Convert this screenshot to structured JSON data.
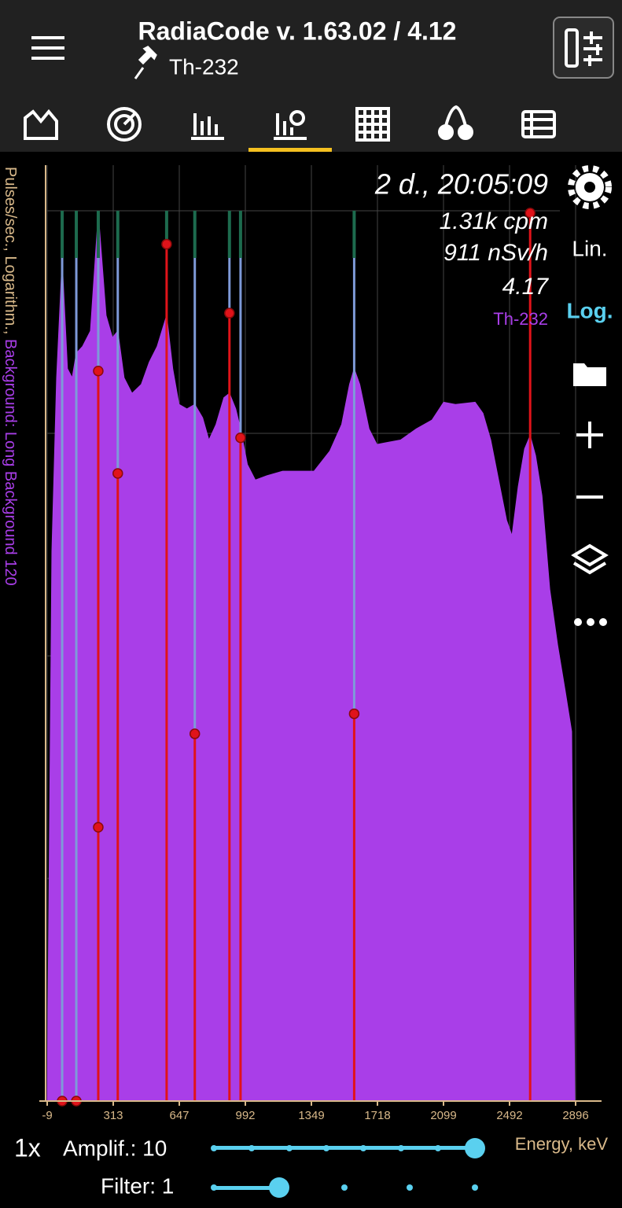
{
  "header": {
    "title": "RadiaCode v. 1.63.02 / 4.12",
    "subtitle": "Th-232"
  },
  "chart_data": {
    "type": "area",
    "y_label_prefix": "Pulses/sec., Logarithm.,",
    "y_label_background": "Background: Long Background 120",
    "x_label": "Energy, keV",
    "info": [
      "2 d., 20:05:09",
      "1.31k cpm",
      "911 nSv/h",
      "4.17"
    ],
    "spectrum_name": "Th-232",
    "color": "#a93ee8",
    "x": [
      -9,
      14,
      37,
      64,
      90,
      113,
      133,
      163,
      202,
      240,
      278,
      309,
      336,
      368,
      408,
      455,
      495,
      535,
      583,
      614,
      646,
      687,
      728,
      769,
      802,
      839,
      880,
      909,
      942,
      967,
      1003,
      1046,
      1109,
      1194,
      1279,
      1364,
      1452,
      1518,
      1562,
      1588,
      1619,
      1671,
      1715,
      1783,
      1851,
      1942,
      2033,
      2100,
      2170,
      2287,
      2334,
      2380,
      2427,
      2474,
      2507,
      2545,
      2584,
      2618,
      2651,
      2690,
      2738,
      2786,
      2833,
      2872,
      2891
    ],
    "values": [
      0,
      2.47,
      3.25,
      3.78,
      3.29,
      3.25,
      3.36,
      3.39,
      3.46,
      3.99,
      3.53,
      3.43,
      3.46,
      3.25,
      3.18,
      3.22,
      3.32,
      3.39,
      3.53,
      3.29,
      3.13,
      3.11,
      3.13,
      3.07,
      2.97,
      3.04,
      3.16,
      3.18,
      3.11,
      3.02,
      2.86,
      2.79,
      2.81,
      2.83,
      2.83,
      2.83,
      2.92,
      3.04,
      3.22,
      3.29,
      3.22,
      3.02,
      2.95,
      2.96,
      2.97,
      3.02,
      3.06,
      3.14,
      3.13,
      3.14,
      3.09,
      2.97,
      2.79,
      2.61,
      2.54,
      2.76,
      2.93,
      2.99,
      2.9,
      2.72,
      2.3,
      2.05,
      1.84,
      1.66,
      0
    ],
    "xlim": [
      -9,
      2896
    ],
    "xticks": [
      -9,
      313,
      647,
      992,
      1349,
      1718,
      2099,
      2492,
      2896
    ],
    "ylim": [
      0,
      4
    ],
    "yticks": [
      0,
      1,
      2,
      3,
      4
    ],
    "grid": true,
    "peak_lines": {
      "color": "#e0131a",
      "energies": [
        64,
        133,
        240,
        336,
        583,
        728,
        909,
        967,
        1588,
        2618
      ],
      "markers": [
        [
          0
        ],
        [
          0
        ],
        [
          3.28,
          1.23
        ],
        [
          2.82
        ],
        [
          3.85
        ],
        [
          1.65
        ],
        [
          3.54
        ],
        [
          2.98
        ],
        [
          1.74
        ],
        [
          3.99
        ]
      ]
    }
  },
  "side_menu": {
    "lin": "Lin.",
    "log": "Log."
  },
  "controls": {
    "zoom": "1x",
    "amplification": "Amplif.: 10",
    "filter": "Filter: 1"
  }
}
